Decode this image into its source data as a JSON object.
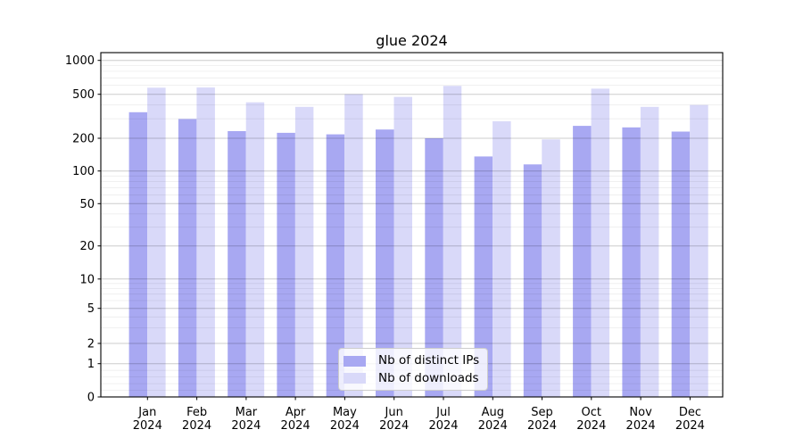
{
  "chart_data": {
    "type": "bar",
    "title": "glue 2024",
    "xlabel": "",
    "ylabel": "",
    "yscale": "symlog",
    "y_ticks": [
      0,
      1,
      2,
      5,
      10,
      20,
      50,
      100,
      200,
      500,
      1000
    ],
    "y_tick_labels": [
      "0",
      "1",
      "2",
      "5",
      "10",
      "20",
      "50",
      "100",
      "200",
      "500",
      "1000"
    ],
    "ylim": [
      0,
      1200
    ],
    "grid": "both (major + minor horizontal gridlines)",
    "legend_position": "lower center",
    "categories": [
      "Jan",
      "Feb",
      "Mar",
      "Apr",
      "May",
      "Jun",
      "Jul",
      "Aug",
      "Sep",
      "Oct",
      "Nov",
      "Dec"
    ],
    "x_tick_second_line": "2024",
    "series": [
      {
        "name": "Nb of distinct IPs",
        "color": "#a8a8f2",
        "values": [
          344,
          299,
          232,
          224,
          217,
          240,
          200,
          136,
          115,
          259,
          251,
          230
        ]
      },
      {
        "name": "Nb of downloads",
        "color": "#d9d9f9",
        "values": [
          572,
          574,
          423,
          385,
          501,
          474,
          594,
          285,
          195,
          561,
          385,
          400
        ]
      }
    ]
  }
}
